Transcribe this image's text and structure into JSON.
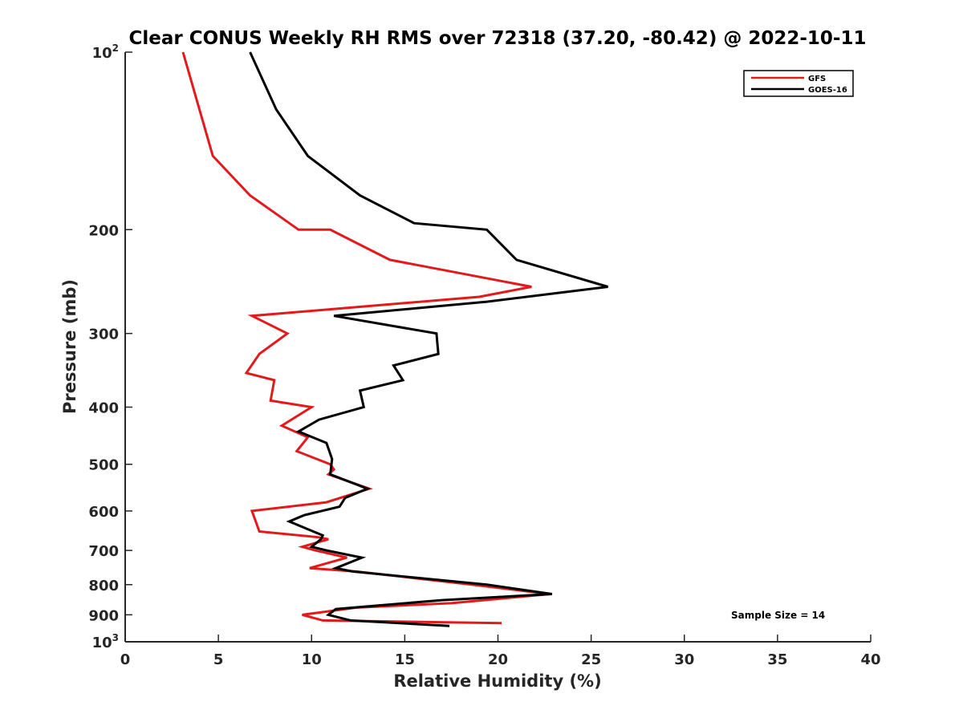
{
  "chart_data": {
    "type": "line",
    "title": "Clear CONUS Weekly RH RMS over 72318 (37.20, -80.42) @ 2022-10-11",
    "xlabel": "Relative Humidity (%)",
    "ylabel": "Pressure (mb)",
    "xlim": [
      0,
      40
    ],
    "ylim": [
      100,
      1000
    ],
    "y_scale": "log",
    "y_reversed": true,
    "x_ticks": [
      "0",
      "5",
      "10",
      "15",
      "20",
      "25",
      "30",
      "35",
      "40"
    ],
    "y_ticks": [
      {
        "value": 100,
        "base": "10",
        "exp": "2"
      },
      {
        "value": 200,
        "label": "200"
      },
      {
        "value": 300,
        "label": "300"
      },
      {
        "value": 400,
        "label": "400"
      },
      {
        "value": 500,
        "label": "500"
      },
      {
        "value": 600,
        "label": "600"
      },
      {
        "value": 700,
        "label": "700"
      },
      {
        "value": 800,
        "label": "800"
      },
      {
        "value": 900,
        "label": "900"
      },
      {
        "value": 1000,
        "base": "10",
        "exp": "3"
      }
    ],
    "grid": false,
    "legend_position": "top-right",
    "annotation": "Sample Size = 14",
    "series": [
      {
        "name": "GFS",
        "color": "#e31a1c",
        "points": [
          [
            3.1,
            100
          ],
          [
            4.7,
            150
          ],
          [
            6.7,
            175
          ],
          [
            9.3,
            200
          ],
          [
            11.0,
            200
          ],
          [
            14.2,
            225
          ],
          [
            21.8,
            250
          ],
          [
            19.0,
            260
          ],
          [
            6.8,
            280
          ],
          [
            8.7,
            300
          ],
          [
            7.2,
            325
          ],
          [
            6.5,
            350
          ],
          [
            8.0,
            360
          ],
          [
            7.8,
            390
          ],
          [
            10.0,
            400
          ],
          [
            8.4,
            430
          ],
          [
            9.8,
            450
          ],
          [
            9.2,
            475
          ],
          [
            11.0,
            500
          ],
          [
            11.2,
            510
          ],
          [
            10.9,
            520
          ],
          [
            13.1,
            550
          ],
          [
            10.8,
            580
          ],
          [
            6.8,
            600
          ],
          [
            7.2,
            650
          ],
          [
            10.4,
            665
          ],
          [
            10.9,
            670
          ],
          [
            9.5,
            690
          ],
          [
            10.2,
            700
          ],
          [
            11.9,
            720
          ],
          [
            9.9,
            750
          ],
          [
            12.4,
            760
          ],
          [
            18.6,
            800
          ],
          [
            22.8,
            830
          ],
          [
            17.5,
            860
          ],
          [
            12.4,
            875
          ],
          [
            9.5,
            900
          ],
          [
            10.6,
            920
          ],
          [
            20.2,
            930
          ]
        ]
      },
      {
        "name": "GOES-16",
        "color": "#000000",
        "points": [
          [
            6.7,
            100
          ],
          [
            8.1,
            125
          ],
          [
            9.8,
            150
          ],
          [
            12.6,
            175
          ],
          [
            15.5,
            195
          ],
          [
            19.4,
            200
          ],
          [
            21.0,
            225
          ],
          [
            25.9,
            250
          ],
          [
            19.4,
            265
          ],
          [
            11.2,
            280
          ],
          [
            16.7,
            300
          ],
          [
            16.8,
            325
          ],
          [
            14.4,
            340
          ],
          [
            14.9,
            360
          ],
          [
            12.6,
            375
          ],
          [
            12.8,
            400
          ],
          [
            10.4,
            420
          ],
          [
            9.3,
            440
          ],
          [
            10.8,
            460
          ],
          [
            11.1,
            490
          ],
          [
            11.0,
            520
          ],
          [
            13.0,
            550
          ],
          [
            11.8,
            570
          ],
          [
            11.5,
            590
          ],
          [
            9.6,
            610
          ],
          [
            8.8,
            625
          ],
          [
            10.6,
            660
          ],
          [
            10.5,
            670
          ],
          [
            10.0,
            690
          ],
          [
            10.8,
            700
          ],
          [
            12.7,
            720
          ],
          [
            11.3,
            750
          ],
          [
            12.2,
            760
          ],
          [
            19.4,
            800
          ],
          [
            22.9,
            830
          ],
          [
            17.0,
            850
          ],
          [
            11.3,
            880
          ],
          [
            10.9,
            900
          ],
          [
            12.1,
            920
          ],
          [
            17.4,
            940
          ]
        ]
      }
    ]
  }
}
